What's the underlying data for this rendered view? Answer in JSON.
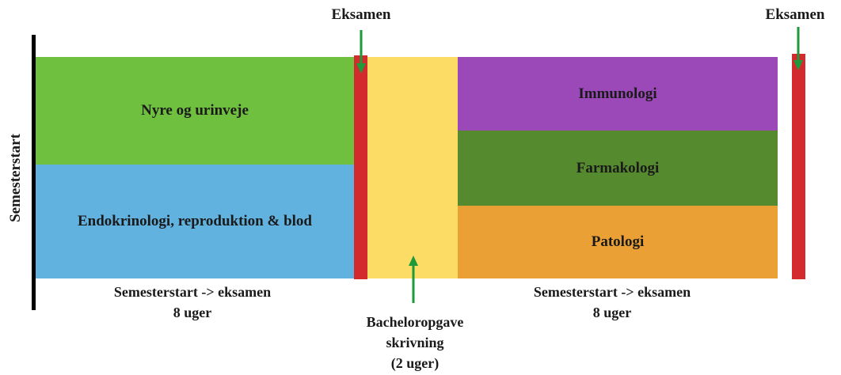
{
  "left_axis_label": "Semesterstart",
  "blocks": {
    "nyre": {
      "label": "Nyre og urinveje",
      "color": "#70c040"
    },
    "endokrin": {
      "label": "Endokrinologi, reproduktion & blod",
      "color": "#62b2e0"
    },
    "bachelor": {
      "color": "#fcdc64"
    },
    "immunologi": {
      "label": "Immunologi",
      "color": "#9b48b8"
    },
    "farmakologi": {
      "label": "Farmakologi",
      "color": "#568a2e"
    },
    "patologi": {
      "label": "Patologi",
      "color": "#eba035"
    }
  },
  "exams": {
    "first": {
      "label": "Eksamen"
    },
    "second": {
      "label": "Eksamen"
    }
  },
  "captions": {
    "left": {
      "line1": "Semesterstart -> eksamen",
      "line2": "8 uger"
    },
    "right": {
      "line1": "Semesterstart -> eksamen",
      "line2": "8 uger"
    },
    "bachelor": {
      "line1": "Bacheloropgave",
      "line2": "skrivning",
      "line3": "(2 uger)"
    }
  },
  "colors": {
    "exam_bar": "#d32a2e",
    "arrow": "#1f9a3a",
    "axis": "#000000"
  }
}
